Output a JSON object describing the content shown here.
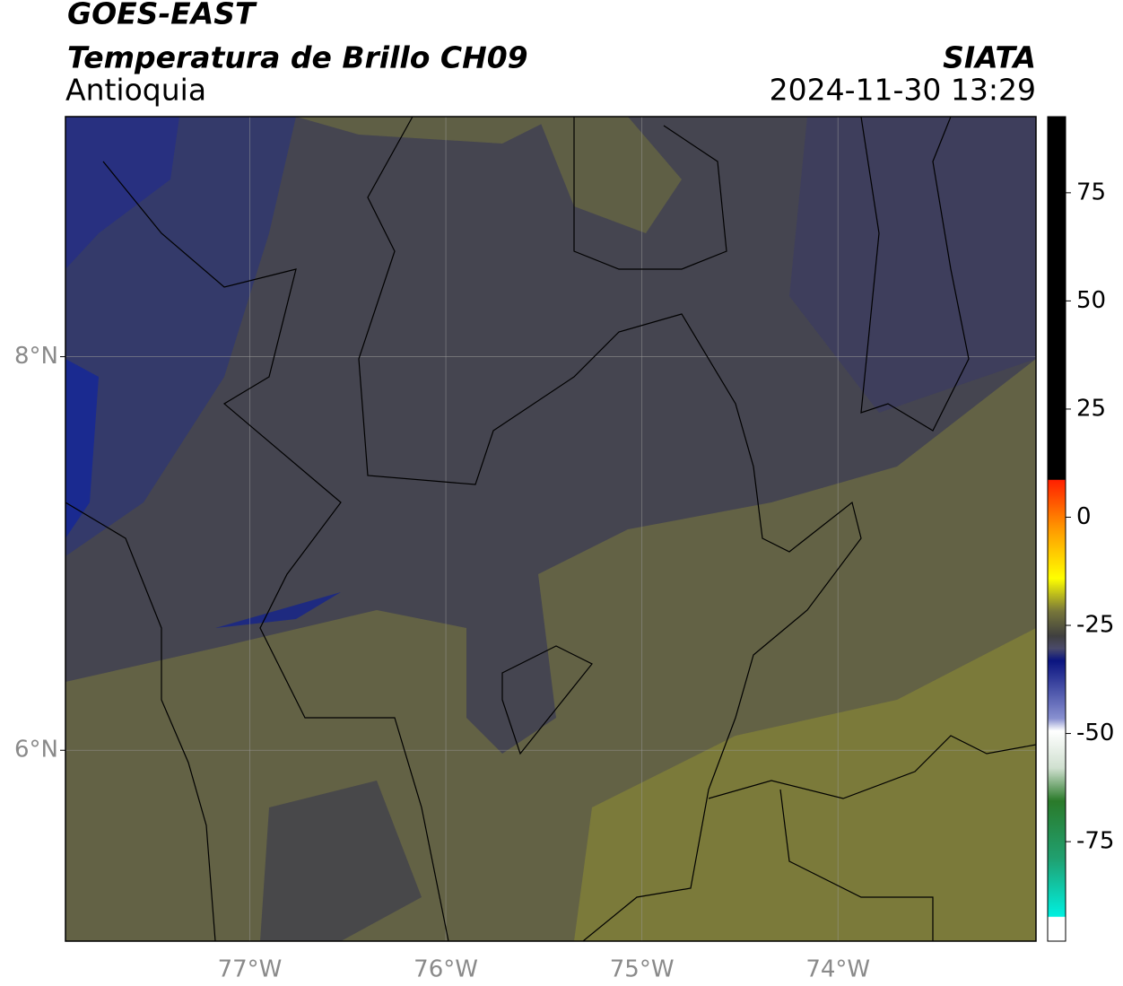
{
  "header": {
    "title": "GOES-EAST",
    "subtitle": "Temperatura de Brillo CH09",
    "region": "Antioquia",
    "source": "SIATA",
    "timestamp": "2024-11-30 13:29"
  },
  "map": {
    "xlim": [
      -77.94,
      -72.99
    ],
    "ylim": [
      5.03,
      9.22
    ],
    "xticks": [
      {
        "value": -77,
        "label": "77°W"
      },
      {
        "value": -76,
        "label": "76°W"
      },
      {
        "value": -75,
        "label": "75°W"
      },
      {
        "value": -74,
        "label": "74°W"
      }
    ],
    "yticks": [
      {
        "value": 6,
        "label": "6°N"
      },
      {
        "value": 8,
        "label": "8°N"
      }
    ],
    "grid": true
  },
  "colorbar": {
    "lim": [
      -98,
      92.6
    ],
    "ticks": [
      -75,
      -50,
      -25,
      0,
      25,
      50,
      75
    ]
  }
}
